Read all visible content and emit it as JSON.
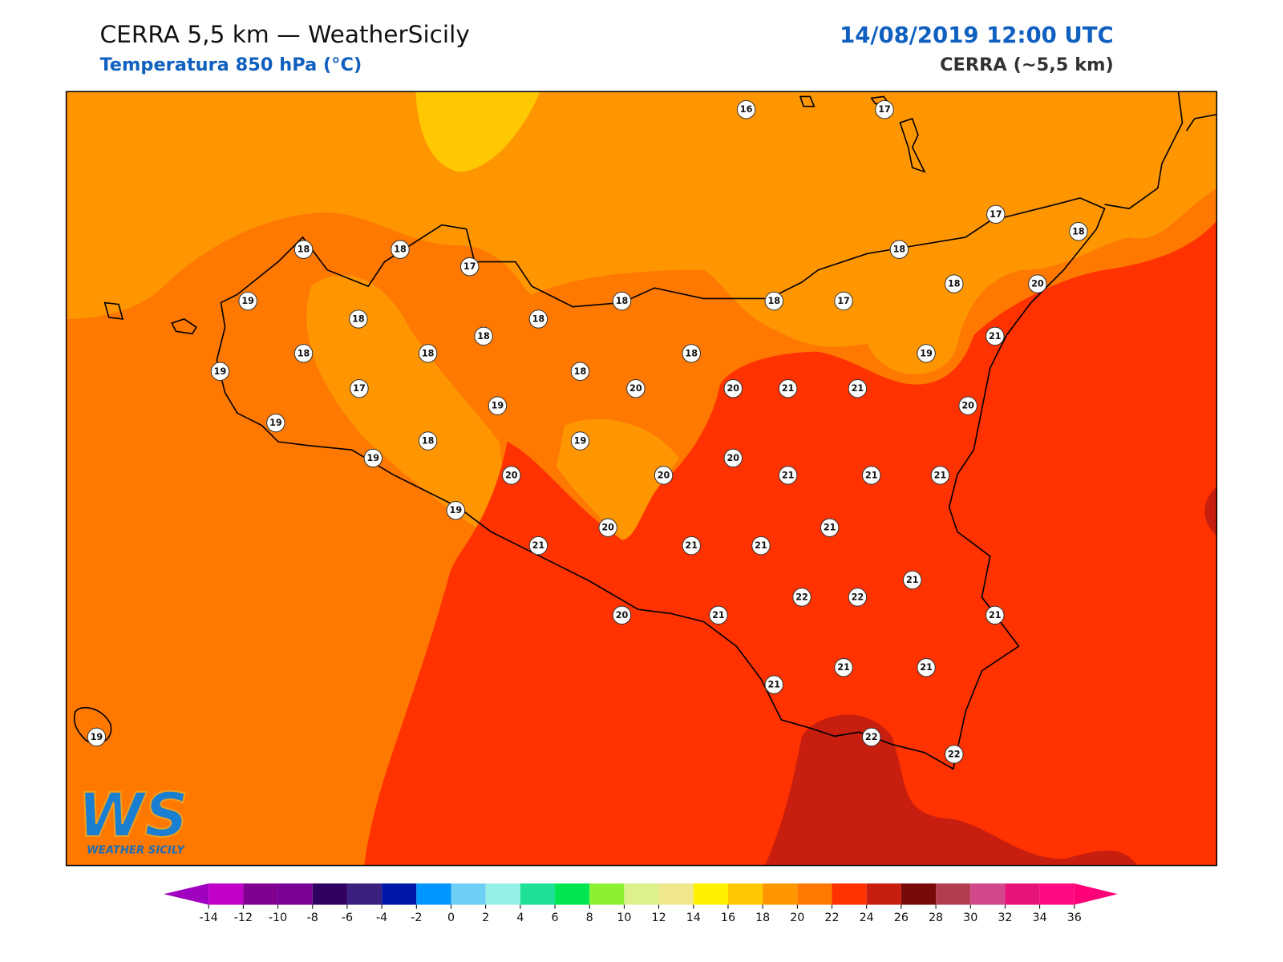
{
  "header": {
    "title": "CERRA 5,5 km — WeatherSicily",
    "subtitle": "Temperatura 850 hPa (°C)",
    "datetime": "14/08/2019 12:00 UTC",
    "model": "CERRA (~5,5 km)"
  },
  "stations": [
    16,
    17,
    17,
    18,
    18,
    18,
    17,
    18,
    18,
    20,
    19,
    18,
    18,
    18,
    18,
    17,
    18,
    21,
    18,
    18,
    18,
    19,
    19,
    18,
    17,
    20,
    20,
    21,
    21,
    19,
    20,
    19,
    18,
    19,
    19,
    20,
    20,
    20,
    21,
    21,
    21,
    19,
    21,
    20,
    21,
    21,
    21,
    21,
    22,
    22,
    21,
    20,
    21,
    21,
    21,
    21,
    19,
    22,
    22
  ],
  "colorbar": {
    "ticks": [
      -14,
      -12,
      -10,
      -8,
      -6,
      -4,
      -2,
      0,
      2,
      4,
      6,
      8,
      10,
      12,
      14,
      16,
      18,
      20,
      22,
      24,
      26,
      28,
      30,
      32,
      34,
      36
    ],
    "colors": [
      "#c000c8",
      "#800090",
      "#7a0096",
      "#300060",
      "#3c2080",
      "#0018a8",
      "#0096ff",
      "#6ecff6",
      "#96f0e6",
      "#1ee196",
      "#00e650",
      "#8cf032",
      "#dcf08c",
      "#f0e68c",
      "#fff000",
      "#ffc800",
      "#ff9600",
      "#ff7800",
      "#ff3200",
      "#c81e0f",
      "#780a0a",
      "#b43c50",
      "#d2468c",
      "#e61478",
      "#ff0a82"
    ],
    "under_color": "#a000c0",
    "over_color": "#ff0078"
  },
  "logo": {
    "mark": "WS",
    "name": "WEATHER SICILY"
  }
}
